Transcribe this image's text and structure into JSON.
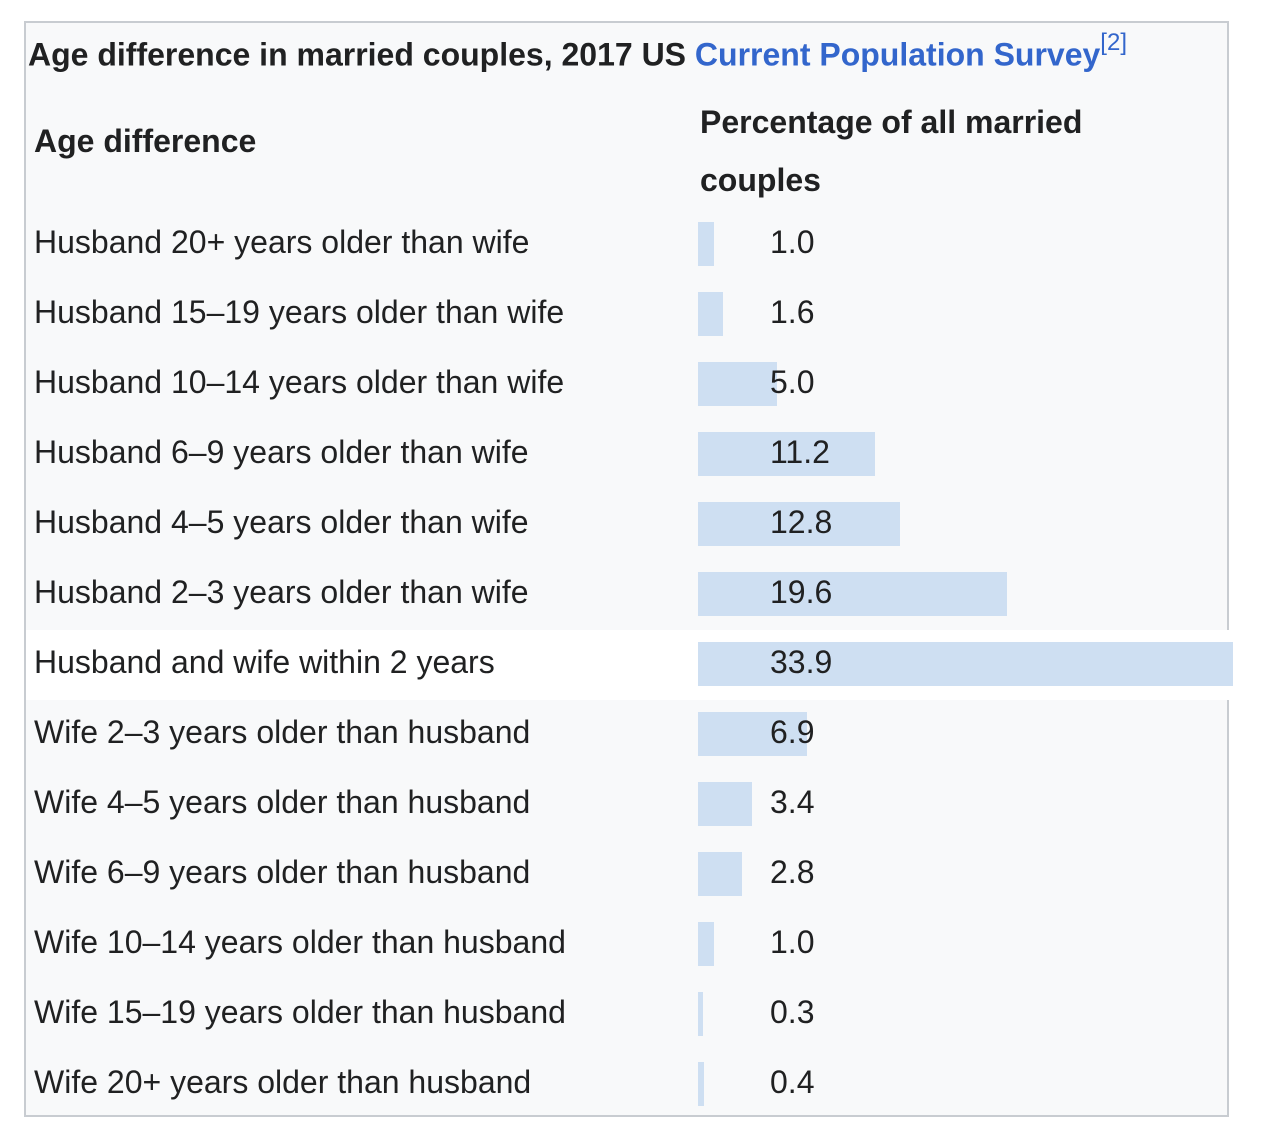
{
  "caption": {
    "text": "Age difference in married couples, 2017 US ",
    "link": "Current Population Survey",
    "ref": "[2]"
  },
  "headers": [
    "Age difference",
    "Percentage of all married couples"
  ],
  "colors": {
    "bar": "#cedff2",
    "link": "#3366cc",
    "background": "#f8f9fa",
    "highlight_row": "#ffffff"
  },
  "highlighted_row": 6,
  "chart_data": {
    "type": "bar",
    "orientation": "horizontal",
    "categories": [
      "Husband 20+ years older than wife",
      "Husband 15–19 years older than wife",
      "Husband 10–14 years older than wife",
      "Husband 6–9 years older than wife",
      "Husband 4–5 years older than wife",
      "Husband 2–3 years older than wife",
      "Husband and wife within 2 years",
      "Wife 2–3 years older than husband",
      "Wife 4–5 years older than husband",
      "Wife 6–9 years older than husband",
      "Wife 10–14 years older than husband",
      "Wife 15–19 years older than husband",
      "Wife 20+ years older than husband"
    ],
    "values": [
      1.0,
      1.6,
      5.0,
      11.2,
      12.8,
      19.6,
      33.9,
      6.9,
      3.4,
      2.8,
      1.0,
      0.3,
      0.4
    ],
    "labels": [
      "1.0",
      "1.6",
      "5.0",
      "11.2",
      "12.8",
      "19.6",
      "33.9",
      "6.9",
      "3.4",
      "2.8",
      "1.0",
      "0.3",
      "0.4"
    ]
  }
}
